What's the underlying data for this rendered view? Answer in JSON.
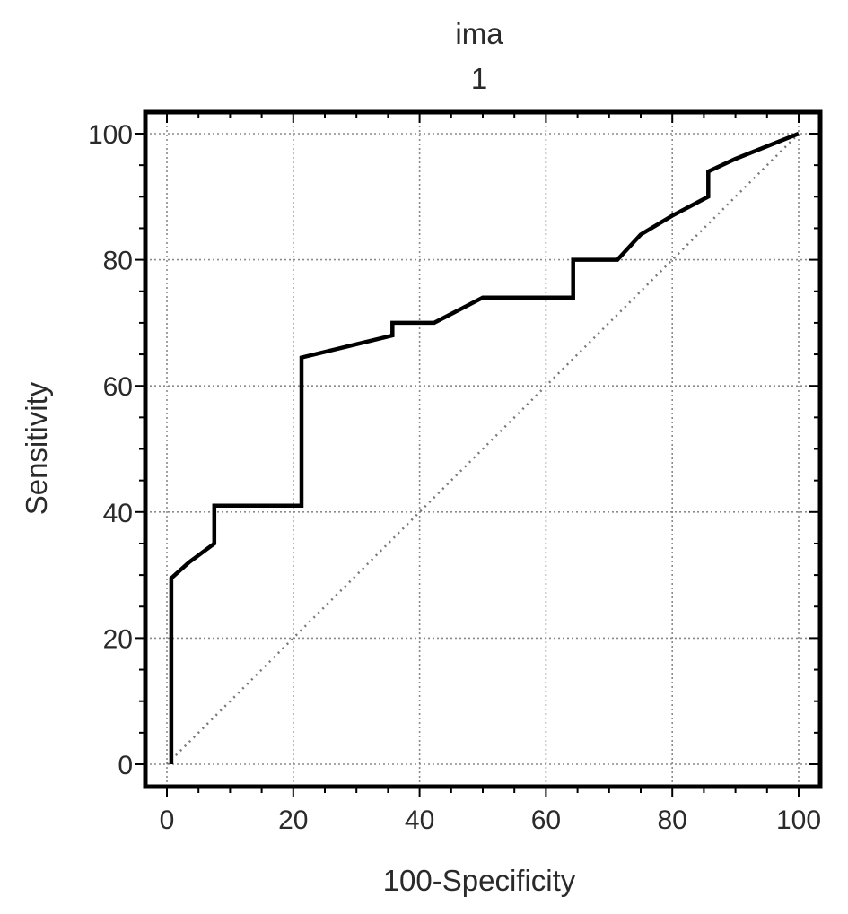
{
  "chart_data": {
    "type": "line",
    "title": "ima",
    "subtitle": "1",
    "xlabel": "100-Specificity",
    "ylabel": "Sensitivity",
    "xlim": [
      0,
      100
    ],
    "ylim": [
      0,
      100
    ],
    "xticks": [
      0,
      20,
      40,
      60,
      80,
      100
    ],
    "yticks": [
      0,
      20,
      40,
      60,
      80,
      100
    ],
    "grid": true,
    "series": [
      {
        "style": "solid",
        "color": "#000000",
        "x": [
          0.7,
          0.7,
          3.5,
          7.5,
          7.5,
          21.3,
          21.3,
          35.7,
          35.7,
          42.3,
          50,
          64.3,
          64.3,
          71.3,
          75,
          80,
          85.7,
          85.7,
          90,
          100
        ],
        "y": [
          0,
          29.5,
          32,
          35,
          41,
          41,
          64.5,
          68,
          70,
          70,
          74,
          74,
          80,
          80,
          84,
          87,
          90,
          94,
          96,
          100
        ]
      },
      {
        "style": "dotted",
        "color": "#777777",
        "x": [
          0,
          100
        ],
        "y": [
          0,
          100
        ]
      }
    ]
  }
}
